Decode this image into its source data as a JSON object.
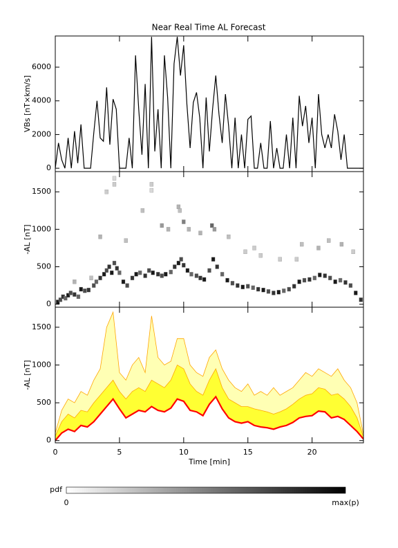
{
  "chart_data": [
    {
      "type": "line",
      "title": "Near Real Time AL Forecast",
      "ylabel": "VBs [nT×km/s]",
      "color": "#000000",
      "xlim": [
        0,
        24
      ],
      "xticks": [
        0,
        5,
        10,
        15,
        20
      ],
      "ylim": [
        -200,
        7850
      ],
      "yticks": [
        0,
        2000,
        4000,
        6000
      ],
      "x": [
        0,
        0.25,
        0.5,
        0.75,
        1,
        1.25,
        1.5,
        1.75,
        2,
        2.25,
        2.5,
        2.75,
        3,
        3.25,
        3.5,
        3.75,
        4,
        4.25,
        4.5,
        4.75,
        5,
        5.25,
        5.5,
        5.75,
        6,
        6.25,
        6.5,
        6.75,
        7,
        7.25,
        7.5,
        7.75,
        8,
        8.25,
        8.5,
        8.75,
        9,
        9.25,
        9.5,
        9.75,
        10,
        10.25,
        10.5,
        10.75,
        11,
        11.25,
        11.5,
        11.75,
        12,
        12.25,
        12.5,
        12.75,
        13,
        13.25,
        13.5,
        13.75,
        14,
        14.25,
        14.5,
        14.75,
        15,
        15.25,
        15.5,
        15.75,
        16,
        16.25,
        16.5,
        16.75,
        17,
        17.25,
        17.5,
        17.75,
        18,
        18.25,
        18.5,
        18.75,
        19,
        19.25,
        19.5,
        19.75,
        20,
        20.25,
        20.5,
        20.75,
        21,
        21.25,
        21.5,
        21.75,
        22,
        22.25,
        22.5,
        22.75,
        23,
        23.25,
        23.5,
        23.75,
        24
      ],
      "values": [
        0,
        1500,
        500,
        0,
        1800,
        0,
        2200,
        300,
        2600,
        0,
        0,
        0,
        2100,
        4000,
        1800,
        1600,
        4800,
        1400,
        4100,
        3500,
        0,
        0,
        0,
        1800,
        0,
        6700,
        3500,
        800,
        5000,
        0,
        7800,
        1000,
        3500,
        0,
        6700,
        4200,
        0,
        6200,
        7800,
        5500,
        7300,
        3800,
        1200,
        3900,
        4500,
        3000,
        0,
        4200,
        1000,
        3500,
        5500,
        3200,
        1500,
        4400,
        2500,
        0,
        3000,
        0,
        2000,
        0,
        2900,
        3100,
        0,
        0,
        1500,
        0,
        0,
        2800,
        0,
        1200,
        0,
        0,
        2000,
        0,
        3000,
        0,
        4300,
        2500,
        3700,
        1500,
        3000,
        0,
        4400,
        2000,
        1200,
        2000,
        1200,
        3200,
        2200,
        500,
        2000,
        0,
        0,
        0,
        0,
        0,
        0
      ]
    },
    {
      "type": "heatmap",
      "ylabel": "-AL [nT]",
      "color": "#000000",
      "xlim": [
        0,
        24
      ],
      "xticks": [
        0,
        5,
        10,
        15,
        20
      ],
      "ylim": [
        -40,
        1770
      ],
      "yticks": [
        0,
        500,
        1000,
        1500
      ],
      "x": [
        0.2,
        0.4,
        0.6,
        0.8,
        1.0,
        1.2,
        1.5,
        1.8,
        2.0,
        2.3,
        2.6,
        3.0,
        3.2,
        3.5,
        3.8,
        4.0,
        4.2,
        4.4,
        4.6,
        4.8,
        5.0,
        5.3,
        5.6,
        6.0,
        6.3,
        6.6,
        7.0,
        7.3,
        7.6,
        8.0,
        8.3,
        8.6,
        9.0,
        9.3,
        9.6,
        9.8,
        10.0,
        10.3,
        10.6,
        11.0,
        11.3,
        11.6,
        12.0,
        12.3,
        12.6,
        13.0,
        13.4,
        13.8,
        14.2,
        14.6,
        15.0,
        15.4,
        15.8,
        16.2,
        16.6,
        17.0,
        17.4,
        17.8,
        18.2,
        18.6,
        19.0,
        19.4,
        19.8,
        20.2,
        20.6,
        21.0,
        21.4,
        21.8,
        22.2,
        22.6,
        23.0,
        23.4,
        23.8,
        4.0,
        4.6,
        4.6,
        6.8,
        7.5,
        7.5,
        8.3,
        8.8,
        9.6,
        9.7,
        10.0,
        10.4,
        11.3,
        12.2,
        12.4,
        13.5,
        14.8,
        16.0,
        17.5,
        19.2,
        20.5,
        21.3,
        22.3,
        23.2,
        3.5,
        5.5,
        15.5,
        18.8,
        1.5,
        2.8
      ],
      "y": [
        30,
        60,
        100,
        80,
        120,
        150,
        130,
        100,
        200,
        180,
        190,
        250,
        300,
        350,
        400,
        450,
        500,
        420,
        550,
        480,
        420,
        300,
        250,
        350,
        400,
        420,
        380,
        450,
        420,
        400,
        380,
        400,
        430,
        500,
        550,
        600,
        520,
        450,
        400,
        380,
        350,
        330,
        450,
        600,
        500,
        400,
        320,
        280,
        250,
        230,
        240,
        220,
        200,
        190,
        170,
        150,
        160,
        180,
        200,
        240,
        300,
        320,
        330,
        350,
        390,
        380,
        350,
        300,
        320,
        290,
        250,
        150,
        60,
        1500,
        1680,
        1600,
        1250,
        1600,
        1520,
        1050,
        1000,
        1300,
        1250,
        1100,
        1000,
        950,
        1050,
        1000,
        900,
        700,
        650,
        600,
        800,
        750,
        850,
        800,
        700,
        900,
        850,
        750,
        600,
        300,
        350
      ],
      "values": [
        0.9,
        0.7,
        0.8,
        0.6,
        0.9,
        0.7,
        0.8,
        0.6,
        0.9,
        0.7,
        0.8,
        0.7,
        0.6,
        0.8,
        0.9,
        0.7,
        0.8,
        0.9,
        0.7,
        0.8,
        0.6,
        0.9,
        0.7,
        0.8,
        0.9,
        0.6,
        0.8,
        0.7,
        0.9,
        0.8,
        0.7,
        0.9,
        0.6,
        0.8,
        0.9,
        0.7,
        0.8,
        0.9,
        0.6,
        0.7,
        0.8,
        0.9,
        0.7,
        0.9,
        0.8,
        0.6,
        0.9,
        0.7,
        0.8,
        0.9,
        0.7,
        0.6,
        0.8,
        0.9,
        0.7,
        0.8,
        0.9,
        0.6,
        0.7,
        0.8,
        0.9,
        0.7,
        0.8,
        0.6,
        0.9,
        0.8,
        0.7,
        0.9,
        0.6,
        0.8,
        0.7,
        0.9,
        0.8,
        0.2,
        0.15,
        0.2,
        0.25,
        0.2,
        0.15,
        0.4,
        0.3,
        0.3,
        0.25,
        0.5,
        0.3,
        0.3,
        0.6,
        0.4,
        0.25,
        0.2,
        0.2,
        0.2,
        0.25,
        0.3,
        0.25,
        0.3,
        0.2,
        0.3,
        0.25,
        0.2,
        0.2,
        0.3,
        0.25
      ]
    },
    {
      "type": "band",
      "ylabel": "-AL [nT]",
      "xlabel": "Time [min]",
      "xlim": [
        0,
        24
      ],
      "xticks": [
        0,
        5,
        10,
        15,
        20
      ],
      "ylim": [
        -30,
        1765
      ],
      "yticks": [
        0,
        500,
        1000,
        1500
      ],
      "x": [
        0,
        0.5,
        1,
        1.5,
        2,
        2.5,
        3,
        3.5,
        4,
        4.5,
        5,
        5.5,
        6,
        6.5,
        7,
        7.5,
        8,
        8.5,
        9,
        9.5,
        10,
        10.5,
        11,
        11.5,
        12,
        12.5,
        13,
        13.5,
        14,
        14.5,
        15,
        15.5,
        16,
        16.5,
        17,
        17.5,
        18,
        18.5,
        19,
        19.5,
        20,
        20.5,
        21,
        21.5,
        22,
        22.5,
        23,
        23.5,
        24
      ],
      "series": [
        {
          "color": "#ffa500",
          "fill": "#ffffb4",
          "values": [
            100,
            400,
            550,
            500,
            650,
            600,
            800,
            950,
            1500,
            1700,
            900,
            800,
            1000,
            1100,
            900,
            1650,
            1100,
            1000,
            1050,
            1350,
            1350,
            1000,
            900,
            850,
            1100,
            1200,
            950,
            800,
            700,
            650,
            750,
            600,
            650,
            600,
            700,
            600,
            650,
            700,
            800,
            900,
            850,
            950,
            900,
            850,
            950,
            800,
            700,
            500,
            80
          ]
        },
        {
          "color": "#ffa500",
          "fill": "#ffff33",
          "values": [
            60,
            250,
            350,
            300,
            400,
            380,
            500,
            600,
            700,
            800,
            650,
            550,
            650,
            700,
            650,
            800,
            750,
            700,
            800,
            1000,
            950,
            750,
            650,
            600,
            800,
            950,
            700,
            550,
            500,
            450,
            450,
            420,
            400,
            380,
            350,
            380,
            420,
            480,
            550,
            600,
            620,
            700,
            680,
            600,
            620,
            550,
            450,
            300,
            50
          ]
        },
        {
          "color": "#ff0000",
          "values": [
            0,
            100,
            150,
            120,
            200,
            180,
            250,
            350,
            450,
            550,
            420,
            300,
            350,
            400,
            380,
            450,
            400,
            380,
            430,
            550,
            520,
            400,
            380,
            330,
            480,
            580,
            420,
            300,
            250,
            230,
            250,
            200,
            180,
            170,
            150,
            180,
            200,
            240,
            300,
            320,
            330,
            390,
            380,
            300,
            320,
            280,
            200,
            120,
            20
          ]
        }
      ]
    }
  ],
  "colorbar": {
    "label": "pdf",
    "min_label": "0",
    "max_label": "max(p)",
    "colors": [
      "#ffffff",
      "#000000"
    ]
  }
}
